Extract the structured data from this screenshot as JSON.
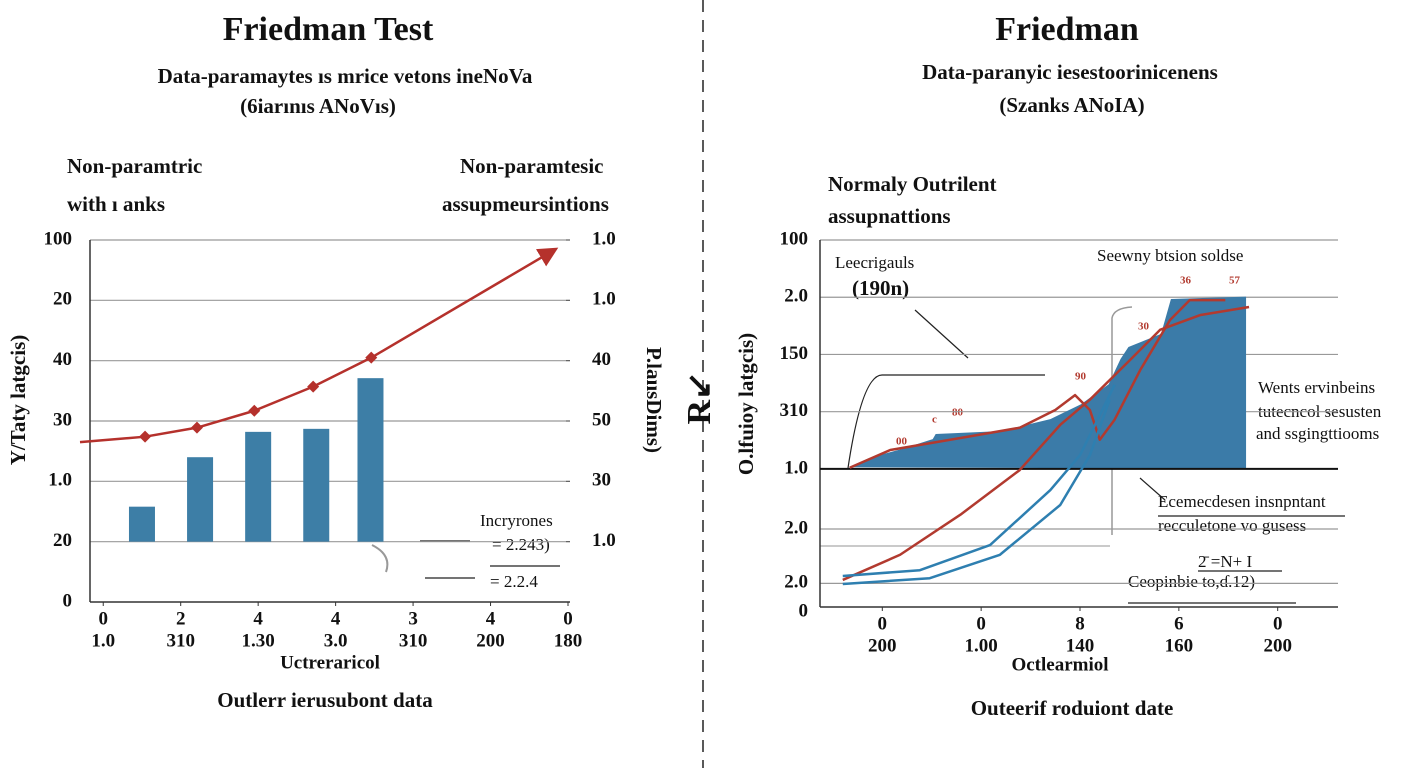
{
  "chart_data": [
    {
      "type": "bar",
      "title": "Friedman Test",
      "subtitle": [
        "Data-paramaytes ıs mrice vetons ineNoVa",
        "(6iarınıs ANoVıs)"
      ],
      "annotations": [
        "Non-paramtric",
        "with ı anks",
        "Non-paramtesic",
        "assupmeursintions",
        "Incryrones",
        "= 2.243)",
        "= 2.2.4"
      ],
      "ylabel": "Y/Taty latgcis)",
      "y2label": "P.laıısDims)",
      "xlabel": "Uctreraricol",
      "caption": "Outlerr ierusubont data",
      "xlim": [
        -0.3,
        6
      ],
      "xticks": [
        0,
        {
          "value": 1,
          "label": "2"
        },
        {
          "value": 2,
          "label": "4"
        },
        {
          "value": 3,
          "label": "4"
        },
        {
          "value": 4,
          "label": "3"
        },
        {
          "value": 5,
          "label": "4"
        },
        {
          "value": 6,
          "label": "0"
        }
      ],
      "xticks2": [
        {
          "value": 0,
          "label": "1.0"
        },
        {
          "value": 1,
          "label": "310"
        },
        {
          "value": 2,
          "label": "1.30"
        },
        {
          "value": 3,
          "label": "3.0"
        },
        {
          "value": 4,
          "label": "310"
        },
        {
          "value": 5,
          "label": "200"
        },
        {
          "value": 6,
          "label": "180"
        }
      ],
      "ylim": [
        0,
        6
      ],
      "yticks": [
        0,
        {
          "value": 1,
          "label": "20"
        },
        {
          "value": 2,
          "label": "1.0"
        },
        {
          "value": 3,
          "label": "30"
        },
        {
          "value": 4,
          "label": "40"
        },
        {
          "value": 5,
          "label": "20"
        },
        {
          "value": 6,
          "label": "100"
        }
      ],
      "y2lim": [
        0,
        6
      ],
      "y2ticks": [
        {
          "value": 1,
          "label": "1.0"
        },
        {
          "value": 2,
          "label": "30"
        },
        {
          "value": 3,
          "label": "50"
        },
        {
          "value": 4,
          "label": "40"
        },
        {
          "value": 5,
          "label": "1.0"
        },
        {
          "value": 6,
          "label": "1.0"
        }
      ],
      "grid": true,
      "baseline": 1,
      "series": [
        {
          "type": "bar",
          "color": "#3d7ea6",
          "x": [
            0.5,
            1.25,
            2,
            2.75,
            3.45
          ],
          "values": [
            1.58,
            2.4,
            2.82,
            2.87,
            3.71
          ]
        },
        {
          "type": "line",
          "color": "#b5312c",
          "marker": "diamond",
          "x": [
            -0.3,
            0.54,
            1.21,
            1.95,
            2.71,
            3.46,
            5.83
          ],
          "values": [
            2.65,
            2.74,
            2.89,
            3.17,
            3.57,
            4.05,
            5.84
          ]
        }
      ]
    },
    {
      "type": "area",
      "title": "Friedman",
      "subtitle": [
        "Data-paranyic iesestoorinicenens",
        "(Szanks ANoIA)"
      ],
      "annotations": [
        "Normaly Outrilent",
        "assupnattions",
        "Leecrigauls",
        "(190n)",
        "Seewny btsion soldse",
        "Wents ervinbeins",
        "tutecncol sesusten",
        "and ssgingttiooms",
        "Ecemecdesen insnpntant",
        "recculetone vo gusess",
        "2̄ =N+ I",
        "Ceopinbie  to,ɗ.12)",
        "00",
        "c",
        "80",
        "90",
        "30",
        "30",
        "36",
        "57",
        "R↙"
      ],
      "ylabel": "O.lfuioy latgcis)",
      "xlabel": "Octlearmiol",
      "caption": "Outeerif roduiont date",
      "xlim": [
        -0.6,
        4.6
      ],
      "xticks": [
        0,
        {
          "value": 1,
          "label": "0"
        },
        {
          "value": 2,
          "label": "8"
        },
        {
          "value": 3,
          "label": "6"
        },
        {
          "value": 4,
          "label": "0"
        }
      ],
      "xticks2": [
        {
          "value": 0,
          "label": "200"
        },
        {
          "value": 1,
          "label": "1.00"
        },
        {
          "value": 2,
          "label": "140"
        },
        {
          "value": 3,
          "label": "160"
        },
        {
          "value": 4,
          "label": "200"
        }
      ],
      "ylim": [
        0,
        6.5
      ],
      "yticks": [
        0,
        {
          "value": 0.5,
          "label": "2.0"
        },
        {
          "value": 1.45,
          "label": "2.0"
        },
        {
          "value": 2.5,
          "label": "1.0"
        },
        {
          "value": 3.5,
          "label": "310"
        },
        {
          "value": 4.5,
          "label": "150"
        },
        {
          "value": 5.5,
          "label": "2.0"
        },
        {
          "value": 6.5,
          "label": "100"
        }
      ],
      "grid": true,
      "baseline": 2.5,
      "series": [
        {
          "type": "area",
          "color": "#3b7ba8",
          "x": [
            -0.34,
            -0.12,
            0.18,
            0.51,
            0.54,
            1.19,
            1.7,
            2.01,
            2.29,
            2.41,
            2.49,
            2.82,
            2.92,
            3.68
          ],
          "values": [
            2.53,
            2.7,
            2.84,
            3.02,
            3.11,
            3.16,
            3.37,
            3.63,
            3.98,
            4.42,
            4.63,
            4.86,
            5.47,
            5.51
          ]
        },
        {
          "type": "line",
          "color": "#b23a2f",
          "x": [
            -0.33,
            0.08,
            0.79,
            1.39,
            1.75,
            1.95,
            2.1,
            2.2,
            2.35,
            2.61,
            2.91,
            3.11,
            3.47
          ],
          "values": [
            2.52,
            2.83,
            3.04,
            3.22,
            3.53,
            3.79,
            3.53,
            3.01,
            3.36,
            4.23,
            5.1,
            5.45,
            5.45
          ]
        },
        {
          "type": "line",
          "color": "#b23a2f",
          "x": [
            -0.4,
            0.18,
            0.79,
            1.39,
            1.8,
            2.1,
            2.51,
            2.81,
            3.22,
            3.71
          ],
          "values": [
            0.56,
            1.0,
            1.7,
            2.48,
            3.27,
            3.71,
            4.41,
            4.93,
            5.19,
            5.33
          ]
        },
        {
          "type": "line",
          "color": "#2e7fb0",
          "x": [
            -0.4,
            0.38,
            1.09,
            1.7,
            2.0,
            2.2,
            2.35
          ],
          "values": [
            0.63,
            0.73,
            1.17,
            2.13,
            2.74,
            3.44,
            3.97
          ]
        },
        {
          "type": "line",
          "color": "#2e7fb0",
          "x": [
            -0.4,
            0.48,
            1.19,
            1.8,
            2.1,
            2.3
          ],
          "values": [
            0.49,
            0.59,
            1.0,
            1.87,
            2.74,
            3.71
          ]
        }
      ]
    }
  ]
}
